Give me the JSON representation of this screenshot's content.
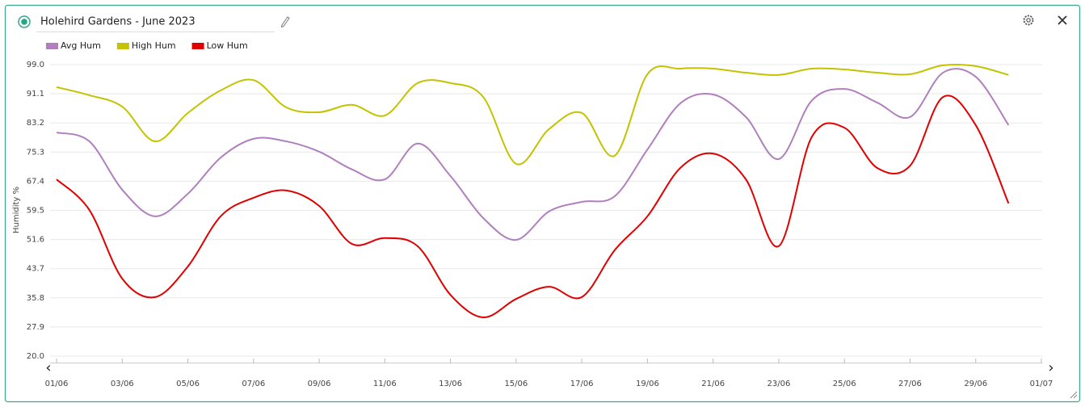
{
  "chart_data": {
    "type": "line",
    "title": "Holehird Gardens - June 2023",
    "y_label": "Humidity %",
    "x": [
      "01/06",
      "02/06",
      "03/06",
      "04/06",
      "05/06",
      "06/06",
      "07/06",
      "08/06",
      "09/06",
      "10/06",
      "11/06",
      "12/06",
      "13/06",
      "14/06",
      "15/06",
      "16/06",
      "17/06",
      "18/06",
      "19/06",
      "20/06",
      "21/06",
      "22/06",
      "23/06",
      "24/06",
      "25/06",
      "26/06",
      "27/06",
      "28/06",
      "29/06",
      "30/06"
    ],
    "xticks": [
      "01/06",
      "03/06",
      "05/06",
      "07/06",
      "09/06",
      "11/06",
      "13/06",
      "15/06",
      "17/06",
      "19/06",
      "21/06",
      "23/06",
      "25/06",
      "27/06",
      "29/06",
      "01/07"
    ],
    "ylim": [
      20,
      99
    ],
    "yticks": [
      {
        "value": 20,
        "label": "20.0"
      },
      27.9,
      35.8,
      43.7,
      51.6,
      59.5,
      67.4,
      75.3,
      83.2,
      91.1,
      {
        "value": 99,
        "label": "99.0"
      }
    ],
    "grid": true,
    "series": [
      {
        "name": "Avg Hum",
        "color": "#b07fbd",
        "values": [
          80.6,
          78.2,
          65.1,
          57.9,
          64.0,
          73.8,
          78.9,
          78.2,
          75.4,
          70.6,
          67.9,
          77.6,
          68.8,
          57.4,
          51.5,
          59.2,
          61.8,
          63.3,
          76.0,
          88.5,
          90.9,
          84.8,
          73.4,
          89.2,
          92.4,
          88.7,
          84.8,
          96.8,
          95.7,
          82.6
        ]
      },
      {
        "name": "High Hum",
        "color": "#c3c300",
        "values": [
          92.9,
          90.7,
          87.6,
          78.2,
          85.9,
          92.0,
          94.8,
          87.4,
          86.1,
          88.1,
          85.2,
          94.0,
          94.0,
          90.2,
          72.1,
          81.5,
          85.9,
          74.3,
          96.4,
          97.9,
          97.9,
          96.8,
          96.2,
          97.9,
          97.7,
          96.8,
          96.4,
          98.8,
          98.6,
          96.2
        ]
      },
      {
        "name": "Low Hum",
        "color": "#e00000",
        "values": [
          67.9,
          59.6,
          41.0,
          36.0,
          44.3,
          57.9,
          62.9,
          64.9,
          60.7,
          50.4,
          52.0,
          49.8,
          36.6,
          30.5,
          35.5,
          38.8,
          36.0,
          48.7,
          57.9,
          71.0,
          74.9,
          67.9,
          49.8,
          79.3,
          81.9,
          71.0,
          71.6,
          90.2,
          82.6,
          61.4
        ]
      }
    ]
  }
}
